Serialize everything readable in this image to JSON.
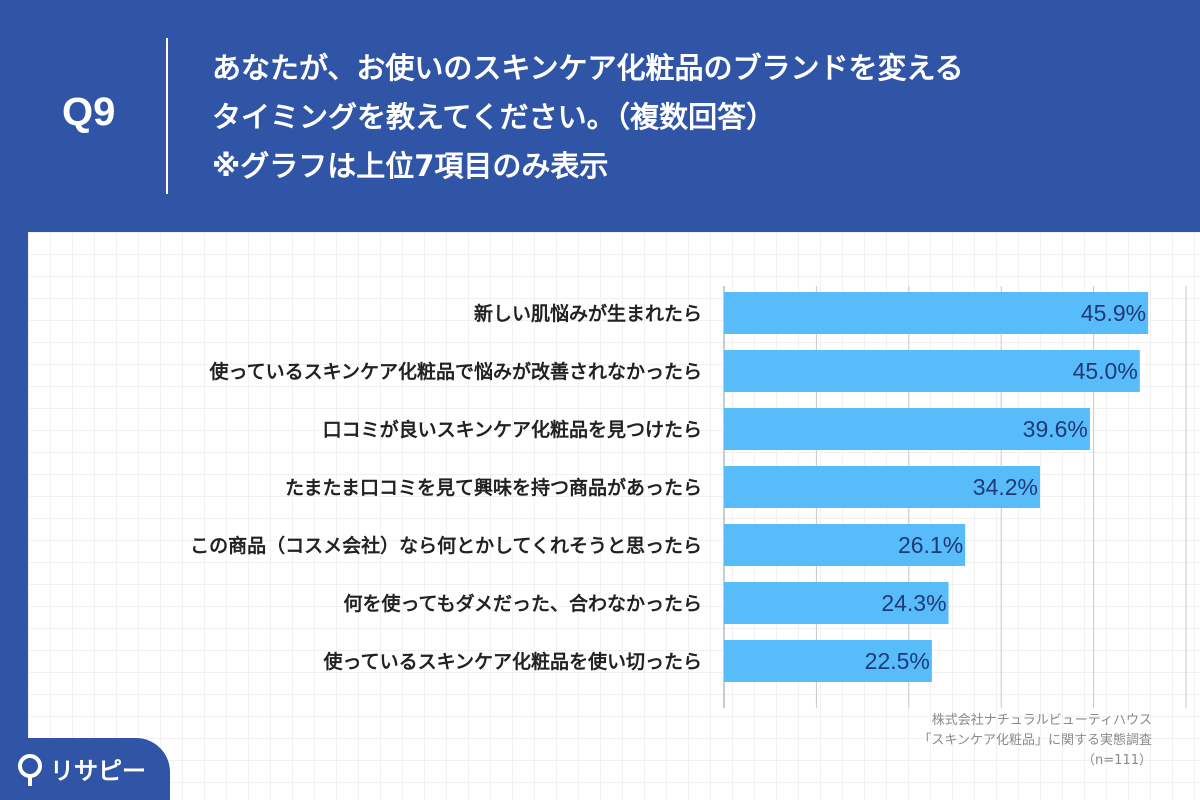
{
  "header": {
    "q_label": "Q9",
    "question_lines": [
      "あなたが、お使いのスキンケア化粧品のブランドを変える",
      "タイミングを教えてください。（複数回答）",
      "※グラフは上位7項目のみ表示"
    ]
  },
  "source": {
    "lines": [
      "株式会社ナチュラルビューティハウス",
      "「スキンケア化粧品」に関する実態調査",
      "（n=111）"
    ]
  },
  "logo": {
    "text": "リサピー",
    "icon": "pin-icon"
  },
  "colors": {
    "background": "#3155a6",
    "bar": "#58bcfb",
    "value_text": "#1f3a75"
  },
  "chart_data": {
    "type": "bar",
    "orientation": "horizontal",
    "categories": [
      "新しい肌悩みが生まれたら",
      "使っているスキンケア化粧品で悩みが改善されなかったら",
      "口コミが良いスキンケア化粧品を見つけたら",
      "たまたま口コミを見て興味を持つ商品があったら",
      "この商品（コスメ会社）なら何とかしてくれそうと思ったら",
      "何を使ってもダメだった、合わなかったら",
      "使っているスキンケア化粧品を使い切ったら"
    ],
    "values": [
      45.9,
      45.0,
      39.6,
      34.2,
      26.1,
      24.3,
      22.5
    ],
    "value_labels": [
      "45.9%",
      "45.0%",
      "39.6%",
      "34.2%",
      "26.1%",
      "24.3%",
      "22.5%"
    ],
    "xlim": [
      0,
      50
    ],
    "grid": true
  }
}
